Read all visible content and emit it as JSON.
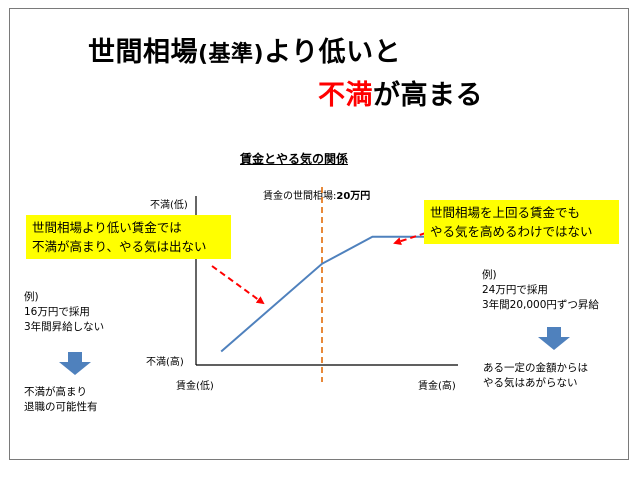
{
  "title": {
    "line1_a": "世間相場",
    "line1_paren": "(基準)",
    "line1_b": "より低いと",
    "line2_red": "不満",
    "line2_rest": "が高まる"
  },
  "chart_data": {
    "type": "line",
    "title": "賃金とやる気の関係",
    "xlabel_low": "賃金(低)",
    "xlabel_high": "賃金(高)",
    "ylabel_top": "不満(低)",
    "ylabel_bottom": "不満(高)",
    "series": [
      {
        "x": [
          0.1,
          0.5,
          0.7,
          1.0
        ],
        "y": [
          0.1,
          0.75,
          0.95,
          0.95
        ]
      }
    ],
    "reference_line": {
      "x": 0.5,
      "label_prefix": "賃金の世間相場:",
      "label_value": "20万円"
    },
    "line_color": "#4f81bd",
    "reference_color": "#e36c09",
    "arrow_color": "#ff0000"
  },
  "callouts": {
    "left_line1": "世間相場より低い賃金では",
    "left_line2": "不満が高まり、やる気は出ない",
    "right_line1": "世間相場を上回る賃金でも",
    "right_line2": "やる気を高めるわけではない"
  },
  "left_example": {
    "line1": "例)",
    "line2": "16万円で採用",
    "line3": "3年間昇給しない",
    "result1": "不満が高まり",
    "result2": "退職の可能性有"
  },
  "right_example": {
    "line1": "例)",
    "line2": "24万円で採用",
    "line3": "3年間20,000円ずつ昇給",
    "result1": "ある一定の金額からは",
    "result2": "やる気はあがらない"
  },
  "colors": {
    "callout_bg": "#ffff00",
    "down_arrow": "#4f81bd",
    "title_red": "#ff0000"
  }
}
